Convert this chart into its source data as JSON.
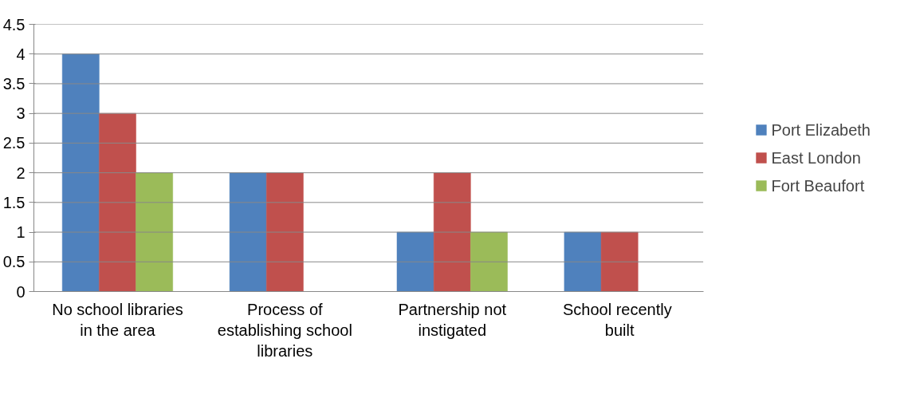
{
  "chart_data": {
    "type": "bar",
    "categories": [
      "No school libraries in the area",
      "Process of establishing school libraries",
      "Partnership not instigated",
      "School  recently built"
    ],
    "series": [
      {
        "name": "Port Elizabeth",
        "color": "#4f81bd",
        "values": [
          4,
          2,
          1,
          1
        ]
      },
      {
        "name": "East London",
        "color": "#c0504d",
        "values": [
          3,
          2,
          2,
          1
        ]
      },
      {
        "name": "Fort Beaufort",
        "color": "#9bbb59",
        "values": [
          2,
          0,
          1,
          0
        ]
      }
    ],
    "ylim": [
      0,
      4.5
    ],
    "yticks": [
      0,
      0.5,
      1,
      1.5,
      2,
      2.5,
      3,
      3.5,
      4,
      4.5
    ],
    "grid": "y",
    "legend": "right"
  }
}
